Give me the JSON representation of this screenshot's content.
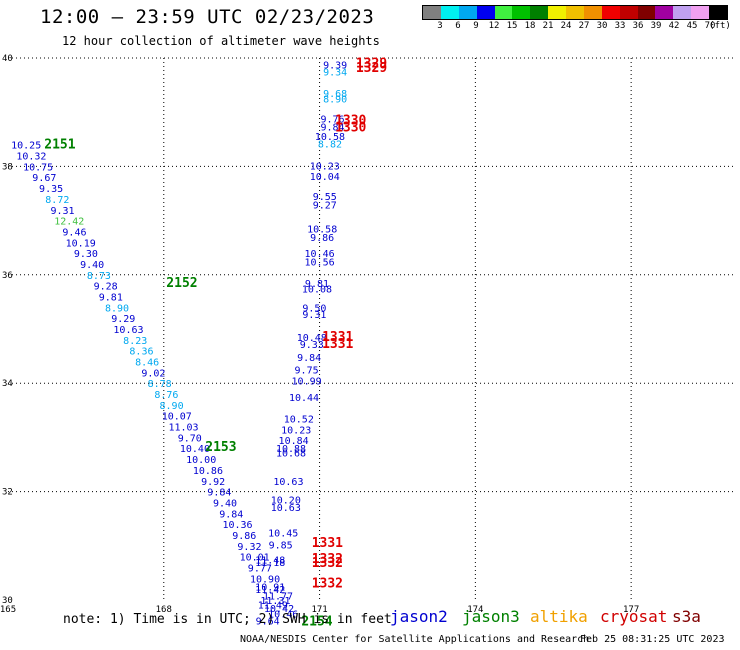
{
  "header": {
    "title": "12:00 – 23:59 UTC 02/23/2023",
    "subtitle": "12 hour collection of altimeter wave heights"
  },
  "colorbar": {
    "colors": [
      "#808080",
      "#00f0f0",
      "#00a8f0",
      "#0000f0",
      "#40f040",
      "#00c000",
      "#008000",
      "#f0f000",
      "#f0c000",
      "#f09000",
      "#f00000",
      "#c00000",
      "#800000",
      "#a000a0",
      "#c0a0f0",
      "#f0a0f0",
      "#000000"
    ],
    "labels": [
      "3",
      "6",
      "9",
      "12",
      "15",
      "18",
      "21",
      "24",
      "27",
      "30",
      "33",
      "36",
      "39",
      "42",
      "45",
      "70",
      "(ft)"
    ]
  },
  "footer": {
    "note": "note: 1) Time is in UTC; 2) SWH is in feet",
    "credit": "NOAA/NESDIS Center for Satellite Applications and Research",
    "timestamp": "Feb 25 08:31:25 UTC 2023",
    "satellites": [
      {
        "label": "jason2",
        "color": "#0000d0"
      },
      {
        "label": "jason3",
        "color": "#008000"
      },
      {
        "label": "altika",
        "color": "#f0a000"
      },
      {
        "label": "cryosat",
        "color": "#d00000"
      },
      {
        "label": "s3a",
        "color": "#800000"
      }
    ]
  },
  "chart_data": {
    "type": "scatter",
    "xlim": [
      165,
      179
    ],
    "ylim": [
      30,
      40
    ],
    "xticks": [
      165,
      168,
      171,
      174,
      177
    ],
    "yticks": [
      30,
      32,
      34,
      36,
      38,
      40
    ],
    "grid": true,
    "colors": {
      "blue": "#0000d0",
      "cyan": "#00a8f0",
      "lightgreen": "#40c040",
      "green": "#008000",
      "red": "#e00000"
    },
    "points": [
      {
        "x": 165.35,
        "y": 38.4,
        "t": "10.25",
        "c": "blue"
      },
      {
        "x": 165.45,
        "y": 38.2,
        "t": "10.32",
        "c": "blue"
      },
      {
        "x": 165.58,
        "y": 38.0,
        "t": "10.75",
        "c": "blue"
      },
      {
        "x": 165.7,
        "y": 37.8,
        "t": "9.67",
        "c": "blue"
      },
      {
        "x": 165.83,
        "y": 37.6,
        "t": "9.35",
        "c": "blue"
      },
      {
        "x": 165.95,
        "y": 37.4,
        "t": "8.72",
        "c": "cyan"
      },
      {
        "x": 166.05,
        "y": 37.2,
        "t": "9.31",
        "c": "blue"
      },
      {
        "x": 166.18,
        "y": 37.0,
        "t": "12.42",
        "c": "lightgreen"
      },
      {
        "x": 166.28,
        "y": 36.8,
        "t": "9.46",
        "c": "blue"
      },
      {
        "x": 166.4,
        "y": 36.6,
        "t": "10.19",
        "c": "blue"
      },
      {
        "x": 166.5,
        "y": 36.4,
        "t": "9.30",
        "c": "blue"
      },
      {
        "x": 166.62,
        "y": 36.2,
        "t": "9.40",
        "c": "blue"
      },
      {
        "x": 166.75,
        "y": 36.0,
        "t": "8.73",
        "c": "cyan"
      },
      {
        "x": 166.88,
        "y": 35.8,
        "t": "9.28",
        "c": "blue"
      },
      {
        "x": 166.98,
        "y": 35.6,
        "t": "9.81",
        "c": "blue"
      },
      {
        "x": 167.1,
        "y": 35.4,
        "t": "8.90",
        "c": "cyan"
      },
      {
        "x": 167.22,
        "y": 35.2,
        "t": "9.29",
        "c": "blue"
      },
      {
        "x": 167.32,
        "y": 35.0,
        "t": "10.63",
        "c": "blue"
      },
      {
        "x": 167.45,
        "y": 34.8,
        "t": "8.23",
        "c": "cyan"
      },
      {
        "x": 167.57,
        "y": 34.6,
        "t": "8.36",
        "c": "cyan"
      },
      {
        "x": 167.68,
        "y": 34.4,
        "t": "8.46",
        "c": "cyan"
      },
      {
        "x": 167.8,
        "y": 34.2,
        "t": "9.02",
        "c": "blue"
      },
      {
        "x": 167.92,
        "y": 34.0,
        "t": "8.78",
        "c": "cyan"
      },
      {
        "x": 168.05,
        "y": 33.8,
        "t": "8.76",
        "c": "cyan"
      },
      {
        "x": 168.15,
        "y": 33.6,
        "t": "8.90",
        "c": "cyan"
      },
      {
        "x": 168.25,
        "y": 33.4,
        "t": "10.07",
        "c": "blue"
      },
      {
        "x": 168.38,
        "y": 33.2,
        "t": "11.03",
        "c": "blue"
      },
      {
        "x": 168.5,
        "y": 33.0,
        "t": "9.70",
        "c": "blue"
      },
      {
        "x": 168.6,
        "y": 32.8,
        "t": "10.40",
        "c": "blue"
      },
      {
        "x": 168.72,
        "y": 32.6,
        "t": "10.00",
        "c": "blue"
      },
      {
        "x": 168.85,
        "y": 32.4,
        "t": "10.86",
        "c": "blue"
      },
      {
        "x": 168.95,
        "y": 32.2,
        "t": "9.92",
        "c": "blue"
      },
      {
        "x": 169.07,
        "y": 32.0,
        "t": "9.84",
        "c": "blue"
      },
      {
        "x": 169.18,
        "y": 31.8,
        "t": "9.40",
        "c": "blue"
      },
      {
        "x": 169.3,
        "y": 31.6,
        "t": "9.84",
        "c": "blue"
      },
      {
        "x": 169.42,
        "y": 31.4,
        "t": "10.36",
        "c": "blue"
      },
      {
        "x": 169.55,
        "y": 31.2,
        "t": "9.86",
        "c": "blue"
      },
      {
        "x": 169.65,
        "y": 31.0,
        "t": "9.32",
        "c": "blue"
      },
      {
        "x": 169.75,
        "y": 30.8,
        "t": "10.01",
        "c": "blue"
      },
      {
        "x": 169.85,
        "y": 30.6,
        "t": "9.77",
        "c": "blue"
      },
      {
        "x": 169.95,
        "y": 30.4,
        "t": "10.90",
        "c": "blue"
      },
      {
        "x": 170.05,
        "y": 30.2,
        "t": "11.42",
        "c": "blue"
      },
      {
        "x": 170.15,
        "y": 30.0,
        "t": "11.31",
        "c": "blue"
      },
      {
        "x": 170.22,
        "y": 29.85,
        "t": "10.42",
        "c": "blue"
      },
      {
        "x": 170.3,
        "y": 29.75,
        "t": "10.46",
        "c": "blue"
      },
      {
        "x": 171.3,
        "y": 39.88,
        "t": "9.39",
        "c": "blue"
      },
      {
        "x": 171.3,
        "y": 39.75,
        "t": "9.34",
        "c": "cyan"
      },
      {
        "x": 171.3,
        "y": 39.35,
        "t": "9.68",
        "c": "cyan"
      },
      {
        "x": 171.3,
        "y": 39.25,
        "t": "8.90",
        "c": "cyan"
      },
      {
        "x": 171.25,
        "y": 38.88,
        "t": "9.76",
        "c": "blue"
      },
      {
        "x": 171.25,
        "y": 38.74,
        "t": "9.84",
        "c": "blue"
      },
      {
        "x": 171.2,
        "y": 38.56,
        "t": "10.58",
        "c": "blue"
      },
      {
        "x": 171.2,
        "y": 38.42,
        "t": "8.82",
        "c": "cyan"
      },
      {
        "x": 171.1,
        "y": 38.02,
        "t": "10.23",
        "c": "blue"
      },
      {
        "x": 171.1,
        "y": 37.82,
        "t": "10.04",
        "c": "blue"
      },
      {
        "x": 171.1,
        "y": 37.45,
        "t": "9.55",
        "c": "blue"
      },
      {
        "x": 171.1,
        "y": 37.3,
        "t": "9.27",
        "c": "blue"
      },
      {
        "x": 171.05,
        "y": 36.85,
        "t": "10.58",
        "c": "blue"
      },
      {
        "x": 171.05,
        "y": 36.7,
        "t": "9.86",
        "c": "blue"
      },
      {
        "x": 171.0,
        "y": 36.4,
        "t": "10.46",
        "c": "blue"
      },
      {
        "x": 171.0,
        "y": 36.25,
        "t": "10.56",
        "c": "blue"
      },
      {
        "x": 170.95,
        "y": 35.85,
        "t": "9.81",
        "c": "blue"
      },
      {
        "x": 170.95,
        "y": 35.75,
        "t": "10.08",
        "c": "blue"
      },
      {
        "x": 170.9,
        "y": 35.4,
        "t": "9.50",
        "c": "blue"
      },
      {
        "x": 170.9,
        "y": 35.28,
        "t": "9.31",
        "c": "blue"
      },
      {
        "x": 170.85,
        "y": 34.85,
        "t": "10.48",
        "c": "blue"
      },
      {
        "x": 170.85,
        "y": 34.72,
        "t": "9.33",
        "c": "blue"
      },
      {
        "x": 170.8,
        "y": 34.48,
        "t": "9.84",
        "c": "blue"
      },
      {
        "x": 170.75,
        "y": 34.25,
        "t": "9.75",
        "c": "blue"
      },
      {
        "x": 170.75,
        "y": 34.05,
        "t": "10.99",
        "c": "blue"
      },
      {
        "x": 170.7,
        "y": 33.75,
        "t": "10.44",
        "c": "blue"
      },
      {
        "x": 170.6,
        "y": 33.35,
        "t": "10.52",
        "c": "blue"
      },
      {
        "x": 170.55,
        "y": 33.15,
        "t": "10.23",
        "c": "blue"
      },
      {
        "x": 170.5,
        "y": 32.95,
        "t": "10.84",
        "c": "blue"
      },
      {
        "x": 170.45,
        "y": 32.8,
        "t": "10.88",
        "c": "blue"
      },
      {
        "x": 170.45,
        "y": 32.72,
        "t": "10.68",
        "c": "blue"
      },
      {
        "x": 170.4,
        "y": 32.2,
        "t": "10.63",
        "c": "blue"
      },
      {
        "x": 170.35,
        "y": 31.85,
        "t": "10.20",
        "c": "blue"
      },
      {
        "x": 170.35,
        "y": 31.72,
        "t": "10.63",
        "c": "blue"
      },
      {
        "x": 170.3,
        "y": 31.25,
        "t": "10.45",
        "c": "blue"
      },
      {
        "x": 170.25,
        "y": 31.02,
        "t": "9.85",
        "c": "blue"
      },
      {
        "x": 170.05,
        "y": 30.75,
        "t": "11.48",
        "c": "blue"
      },
      {
        "x": 170.05,
        "y": 30.7,
        "t": "11.18",
        "c": "blue"
      },
      {
        "x": 170.05,
        "y": 30.25,
        "t": "10.91",
        "c": "blue"
      },
      {
        "x": 170.2,
        "y": 30.08,
        "t": "11.77",
        "c": "blue"
      },
      {
        "x": 170.1,
        "y": 29.92,
        "t": "11.49",
        "c": "blue"
      },
      {
        "x": 170.0,
        "y": 29.62,
        "t": "9.64",
        "c": "blue"
      },
      {
        "x": 172.0,
        "y": 39.9,
        "t": "1329",
        "c": "red"
      },
      {
        "x": 172.0,
        "y": 39.82,
        "t": "1329",
        "c": "red"
      },
      {
        "x": 171.6,
        "y": 38.85,
        "t": "1330",
        "c": "red"
      },
      {
        "x": 171.6,
        "y": 38.72,
        "t": "1330",
        "c": "red"
      },
      {
        "x": 171.35,
        "y": 34.85,
        "t": "1331",
        "c": "red"
      },
      {
        "x": 171.35,
        "y": 34.72,
        "t": "1331",
        "c": "red"
      },
      {
        "x": 171.15,
        "y": 31.05,
        "t": "1331",
        "c": "red"
      },
      {
        "x": 171.15,
        "y": 30.76,
        "t": "1332",
        "c": "red"
      },
      {
        "x": 171.15,
        "y": 30.68,
        "t": "1332",
        "c": "red"
      },
      {
        "x": 171.15,
        "y": 30.3,
        "t": "1332",
        "c": "red"
      },
      {
        "x": 166.0,
        "y": 38.4,
        "t": "2151",
        "c": "green"
      },
      {
        "x": 168.35,
        "y": 35.85,
        "t": "2152",
        "c": "green"
      },
      {
        "x": 169.1,
        "y": 32.82,
        "t": "2153",
        "c": "green"
      },
      {
        "x": 170.95,
        "y": 29.6,
        "t": "2154",
        "c": "green"
      }
    ]
  }
}
